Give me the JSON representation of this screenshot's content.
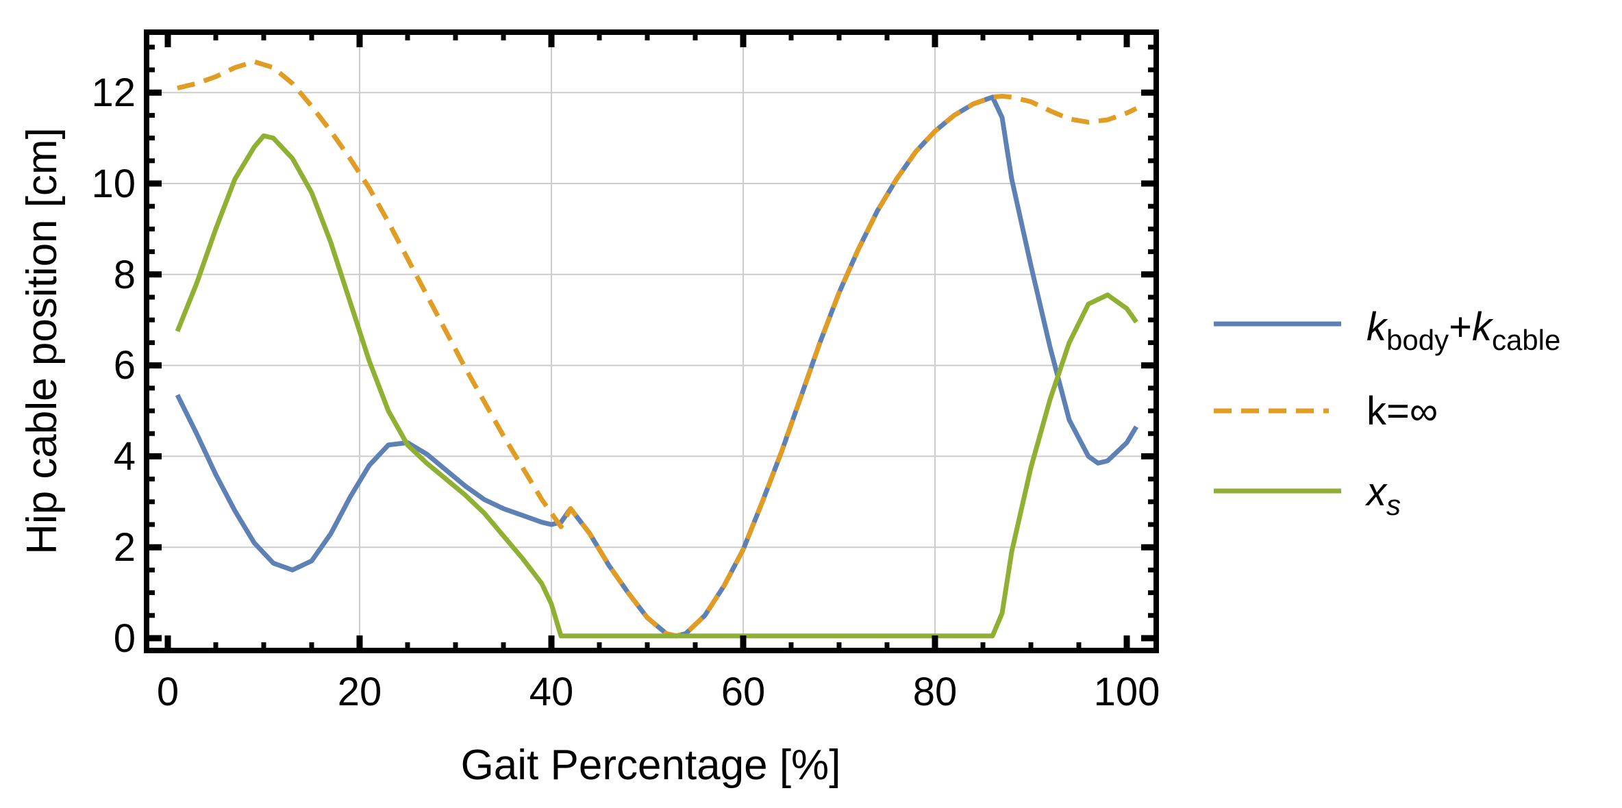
{
  "chart_data": {
    "type": "line",
    "title": "",
    "xlabel": "Gait Percentage [%]",
    "ylabel": "Hip cable position [cm]",
    "xlim": [
      -2,
      103
    ],
    "ylim": [
      -0.3,
      13.4
    ],
    "x_ticks": [
      0,
      20,
      40,
      60,
      80,
      100
    ],
    "y_ticks": [
      0,
      2,
      4,
      6,
      8,
      10,
      12
    ],
    "grid": true,
    "legend_position": "right",
    "series": [
      {
        "name": "k_body+k_cable",
        "legend_main": "k",
        "legend_sub1": "body",
        "legend_plus": "+",
        "legend_main2": "k",
        "legend_sub2": "cable",
        "color": "#5e81b5",
        "dash": "solid",
        "x": [
          1,
          3,
          5,
          7,
          9,
          11,
          13,
          15,
          17,
          19,
          21,
          23,
          25,
          27,
          29,
          31,
          33,
          35,
          37,
          39,
          40,
          41,
          42,
          44,
          46,
          48,
          50,
          52,
          53,
          54,
          56,
          58,
          60,
          62,
          64,
          66,
          68,
          70,
          72,
          74,
          76,
          78,
          80,
          82,
          84,
          86,
          87,
          88,
          90,
          92,
          94,
          96,
          97,
          98,
          100,
          101
        ],
        "y": [
          5.35,
          4.5,
          3.6,
          2.8,
          2.1,
          1.65,
          1.5,
          1.7,
          2.3,
          3.1,
          3.8,
          4.25,
          4.3,
          4.05,
          3.7,
          3.35,
          3.05,
          2.85,
          2.7,
          2.55,
          2.5,
          2.55,
          2.85,
          2.3,
          1.6,
          1.0,
          0.45,
          0.1,
          0.05,
          0.1,
          0.5,
          1.15,
          1.95,
          3.0,
          4.1,
          5.3,
          6.5,
          7.6,
          8.55,
          9.4,
          10.1,
          10.7,
          11.15,
          11.5,
          11.75,
          11.9,
          11.45,
          10.1,
          8.2,
          6.4,
          4.8,
          4.0,
          3.85,
          3.9,
          4.3,
          4.65
        ]
      },
      {
        "name": "k=∞",
        "legend_label": "k=∞",
        "color": "#e19c24",
        "dash": "dashed",
        "x": [
          1,
          3,
          5,
          7,
          9,
          11,
          13,
          15,
          17,
          19,
          21,
          23,
          25,
          27,
          29,
          31,
          33,
          35,
          37,
          39,
          41,
          42,
          44,
          46,
          48,
          50,
          52,
          53,
          54,
          56,
          58,
          60,
          62,
          64,
          66,
          68,
          70,
          72,
          74,
          76,
          78,
          80,
          82,
          84,
          86,
          87,
          88,
          90,
          92,
          94,
          96,
          98,
          100,
          101
        ],
        "y": [
          12.1,
          12.2,
          12.35,
          12.55,
          12.68,
          12.55,
          12.2,
          11.7,
          11.15,
          10.55,
          9.9,
          9.15,
          8.35,
          7.55,
          6.75,
          5.95,
          5.2,
          4.45,
          3.75,
          3.05,
          2.45,
          2.85,
          2.3,
          1.6,
          1.0,
          0.45,
          0.1,
          0.05,
          0.1,
          0.5,
          1.15,
          1.95,
          3.0,
          4.1,
          5.3,
          6.5,
          7.6,
          8.55,
          9.4,
          10.1,
          10.7,
          11.15,
          11.5,
          11.75,
          11.9,
          11.92,
          11.9,
          11.8,
          11.6,
          11.42,
          11.35,
          11.4,
          11.55,
          11.65
        ]
      },
      {
        "name": "x_s",
        "legend_main": "x",
        "legend_sub": "s",
        "color": "#8fb032",
        "dash": "solid",
        "x": [
          1,
          3,
          5,
          7,
          9,
          10,
          11,
          13,
          15,
          17,
          19,
          21,
          23,
          25,
          27,
          29,
          31,
          33,
          35,
          37,
          39,
          40,
          41,
          86,
          87,
          88,
          90,
          92,
          94,
          96,
          98,
          100,
          101
        ],
        "y": [
          6.75,
          7.8,
          9.0,
          10.1,
          10.8,
          11.05,
          11.0,
          10.55,
          9.8,
          8.7,
          7.4,
          6.1,
          5.0,
          4.25,
          3.85,
          3.5,
          3.15,
          2.75,
          2.25,
          1.75,
          1.2,
          0.75,
          0.05,
          0.05,
          0.55,
          1.9,
          3.75,
          5.25,
          6.5,
          7.35,
          7.55,
          7.25,
          6.95
        ]
      }
    ]
  },
  "axes": {
    "x_tick_labels": [
      "0",
      "20",
      "40",
      "60",
      "80",
      "100"
    ],
    "y_tick_labels": [
      "0",
      "2",
      "4",
      "6",
      "8",
      "10",
      "12"
    ],
    "xlabel": "Gait Percentage [%]",
    "ylabel": "Hip cable position [cm]"
  },
  "legend": {
    "item1": {
      "main": "k",
      "sub1": "body",
      "plus": "+",
      "main2": "k",
      "sub2": "cable"
    },
    "item2": {
      "label": "k=∞"
    },
    "item3": {
      "main": "x",
      "sub": "s"
    }
  }
}
